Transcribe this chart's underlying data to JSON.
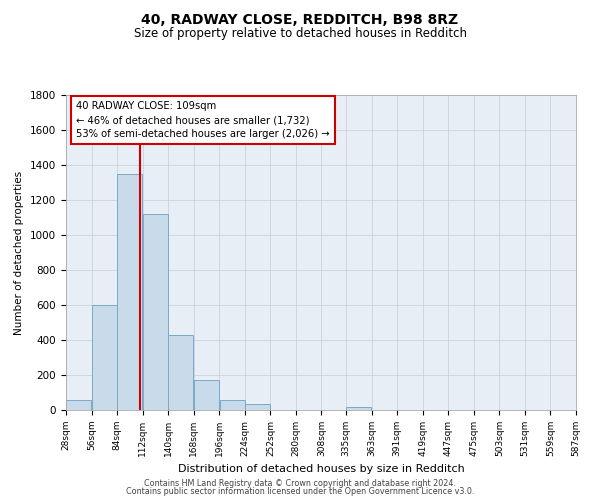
{
  "title1": "40, RADWAY CLOSE, REDDITCH, B98 8RZ",
  "title2": "Size of property relative to detached houses in Redditch",
  "xlabel": "Distribution of detached houses by size in Redditch",
  "ylabel": "Number of detached properties",
  "bin_starts": [
    28,
    56,
    84,
    112,
    140,
    168,
    196,
    224,
    252,
    280,
    308,
    335,
    363,
    391,
    419,
    447,
    475,
    503,
    531,
    559
  ],
  "bin_width": 28,
  "bar_heights": [
    60,
    600,
    1350,
    1120,
    430,
    170,
    60,
    35,
    0,
    0,
    0,
    15,
    0,
    0,
    0,
    0,
    0,
    0,
    0,
    0
  ],
  "bar_color": "#c9daea",
  "bar_edgecolor": "#7aaac8",
  "property_size": 109,
  "vline_color": "#cc0000",
  "annotation_line1": "40 RADWAY CLOSE: 109sqm",
  "annotation_line2": "← 46% of detached houses are smaller (1,732)",
  "annotation_line3": "53% of semi-detached houses are larger (2,026) →",
  "annotation_box_edgecolor": "#cc0000",
  "annotation_box_facecolor": "#ffffff",
  "ylim": [
    0,
    1800
  ],
  "yticks": [
    0,
    200,
    400,
    600,
    800,
    1000,
    1200,
    1400,
    1600,
    1800
  ],
  "xlim_left": 28,
  "xlim_right": 587,
  "tick_labels": [
    "28sqm",
    "56sqm",
    "84sqm",
    "112sqm",
    "140sqm",
    "168sqm",
    "196sqm",
    "224sqm",
    "252sqm",
    "280sqm",
    "308sqm",
    "335sqm",
    "363sqm",
    "391sqm",
    "419sqm",
    "447sqm",
    "475sqm",
    "503sqm",
    "531sqm",
    "559sqm",
    "587sqm"
  ],
  "background_color": "#ffffff",
  "axes_facecolor": "#e8eef5",
  "grid_color": "#c5cdd8",
  "footer_line1": "Contains HM Land Registry data © Crown copyright and database right 2024.",
  "footer_line2": "Contains public sector information licensed under the Open Government Licence v3.0."
}
